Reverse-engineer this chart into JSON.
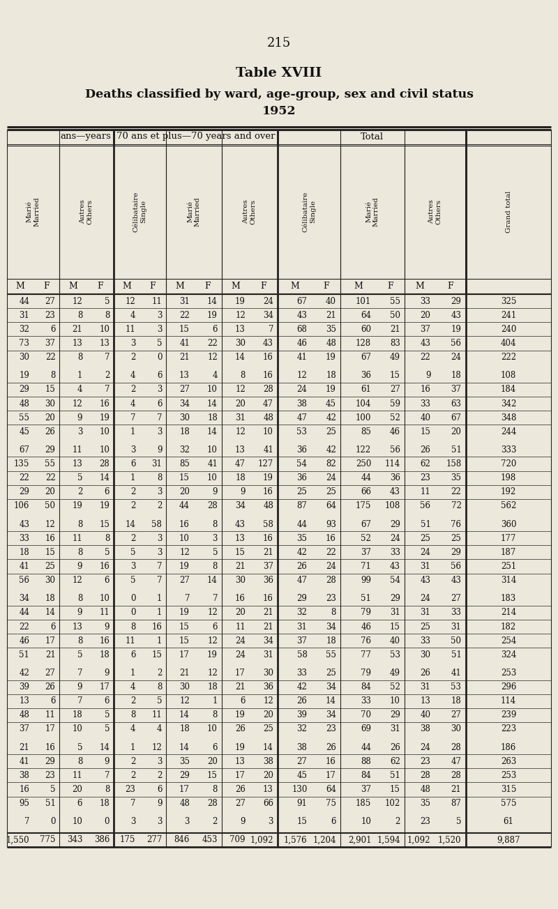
{
  "page_number": "215",
  "title_line1": "Table XVIII",
  "title_line2": "Deaths classified by ward, age-group, sex and civil status",
  "title_line3": "1952",
  "bg_color": "#ede8dc",
  "col_group_headers": [
    "ans—years",
    "70 ans et plus—70 years and over",
    "Total"
  ],
  "rows": [
    [
      44,
      27,
      12,
      5,
      12,
      11,
      31,
      14,
      19,
      24,
      67,
      40,
      101,
      55,
      33,
      29,
      325
    ],
    [
      31,
      23,
      8,
      8,
      4,
      3,
      22,
      19,
      12,
      34,
      43,
      21,
      64,
      50,
      20,
      43,
      241
    ],
    [
      32,
      6,
      21,
      10,
      11,
      3,
      15,
      6,
      13,
      7,
      68,
      35,
      60,
      21,
      37,
      19,
      240
    ],
    [
      73,
      37,
      13,
      13,
      3,
      5,
      41,
      22,
      30,
      43,
      46,
      48,
      128,
      83,
      43,
      56,
      404
    ],
    [
      30,
      22,
      8,
      7,
      2,
      0,
      21,
      12,
      14,
      16,
      41,
      19,
      67,
      49,
      22,
      24,
      222
    ],
    null,
    [
      19,
      8,
      1,
      2,
      4,
      6,
      13,
      4,
      8,
      16,
      12,
      18,
      36,
      15,
      9,
      18,
      108
    ],
    [
      29,
      15,
      4,
      7,
      2,
      3,
      27,
      10,
      12,
      28,
      24,
      19,
      61,
      27,
      16,
      37,
      184
    ],
    [
      48,
      30,
      12,
      16,
      4,
      6,
      34,
      14,
      20,
      47,
      38,
      45,
      104,
      59,
      33,
      63,
      342
    ],
    [
      55,
      20,
      9,
      19,
      7,
      7,
      30,
      18,
      31,
      48,
      47,
      42,
      100,
      52,
      40,
      67,
      348
    ],
    [
      45,
      26,
      3,
      10,
      1,
      3,
      18,
      14,
      12,
      10,
      53,
      25,
      85,
      46,
      15,
      20,
      244
    ],
    null,
    [
      67,
      29,
      11,
      10,
      3,
      9,
      32,
      10,
      13,
      41,
      36,
      42,
      122,
      56,
      26,
      51,
      333
    ],
    [
      135,
      55,
      13,
      28,
      6,
      31,
      85,
      41,
      47,
      127,
      54,
      82,
      250,
      114,
      62,
      158,
      720
    ],
    [
      22,
      22,
      5,
      14,
      1,
      8,
      15,
      10,
      18,
      19,
      36,
      24,
      44,
      36,
      23,
      35,
      198
    ],
    [
      29,
      20,
      2,
      6,
      2,
      3,
      20,
      9,
      9,
      16,
      25,
      25,
      66,
      43,
      11,
      22,
      192
    ],
    [
      106,
      50,
      19,
      19,
      2,
      2,
      44,
      28,
      34,
      48,
      87,
      64,
      175,
      108,
      56,
      72,
      562
    ],
    null,
    [
      43,
      12,
      8,
      15,
      14,
      58,
      16,
      8,
      43,
      58,
      44,
      93,
      67,
      29,
      51,
      76,
      360
    ],
    [
      33,
      16,
      11,
      8,
      2,
      3,
      10,
      3,
      13,
      16,
      35,
      16,
      52,
      24,
      25,
      25,
      177
    ],
    [
      18,
      15,
      8,
      5,
      5,
      3,
      12,
      5,
      15,
      21,
      42,
      22,
      37,
      33,
      24,
      29,
      187
    ],
    [
      41,
      25,
      9,
      16,
      3,
      7,
      19,
      8,
      21,
      37,
      26,
      24,
      71,
      43,
      31,
      56,
      251
    ],
    [
      56,
      30,
      12,
      6,
      5,
      7,
      27,
      14,
      30,
      36,
      47,
      28,
      99,
      54,
      43,
      43,
      314
    ],
    null,
    [
      34,
      18,
      8,
      10,
      0,
      1,
      7,
      7,
      16,
      16,
      29,
      23,
      51,
      29,
      24,
      27,
      183
    ],
    [
      44,
      14,
      9,
      11,
      0,
      1,
      19,
      12,
      20,
      21,
      32,
      8,
      79,
      31,
      31,
      33,
      214
    ],
    [
      22,
      6,
      13,
      9,
      8,
      16,
      15,
      6,
      11,
      21,
      31,
      34,
      46,
      15,
      25,
      31,
      182
    ],
    [
      46,
      17,
      8,
      16,
      11,
      1,
      15,
      12,
      24,
      34,
      37,
      18,
      76,
      40,
      33,
      50,
      254
    ],
    [
      51,
      21,
      5,
      18,
      6,
      15,
      17,
      19,
      24,
      31,
      58,
      55,
      77,
      53,
      30,
      51,
      324
    ],
    null,
    [
      42,
      27,
      7,
      9,
      1,
      2,
      21,
      12,
      17,
      30,
      33,
      25,
      79,
      49,
      26,
      41,
      253
    ],
    [
      39,
      26,
      9,
      17,
      4,
      8,
      30,
      18,
      21,
      36,
      42,
      34,
      84,
      52,
      31,
      53,
      296
    ],
    [
      13,
      6,
      7,
      6,
      2,
      5,
      12,
      1,
      6,
      12,
      26,
      14,
      33,
      10,
      13,
      18,
      114
    ],
    [
      48,
      11,
      18,
      5,
      8,
      11,
      14,
      8,
      19,
      20,
      39,
      34,
      70,
      29,
      40,
      27,
      239
    ],
    [
      37,
      17,
      10,
      5,
      4,
      4,
      18,
      10,
      26,
      25,
      32,
      23,
      69,
      31,
      38,
      30,
      223
    ],
    null,
    [
      21,
      16,
      5,
      14,
      1,
      12,
      14,
      6,
      19,
      14,
      38,
      26,
      44,
      26,
      24,
      28,
      186
    ],
    [
      41,
      29,
      8,
      9,
      2,
      3,
      35,
      20,
      13,
      38,
      27,
      16,
      88,
      62,
      23,
      47,
      263
    ],
    [
      38,
      23,
      11,
      7,
      2,
      2,
      29,
      15,
      17,
      20,
      45,
      17,
      84,
      51,
      28,
      28,
      253
    ],
    [
      16,
      5,
      20,
      8,
      23,
      6,
      17,
      8,
      26,
      13,
      130,
      64,
      37,
      15,
      48,
      21,
      315
    ],
    [
      95,
      51,
      6,
      18,
      7,
      9,
      48,
      28,
      27,
      66,
      91,
      75,
      185,
      102,
      35,
      87,
      575
    ],
    null,
    [
      7,
      0,
      10,
      0,
      3,
      3,
      3,
      2,
      9,
      3,
      15,
      6,
      10,
      2,
      23,
      5,
      61
    ],
    null,
    [
      1550,
      775,
      343,
      386,
      175,
      277,
      846,
      453,
      709,
      1092,
      1576,
      1204,
      2901,
      1594,
      1092,
      1520,
      9887
    ]
  ]
}
